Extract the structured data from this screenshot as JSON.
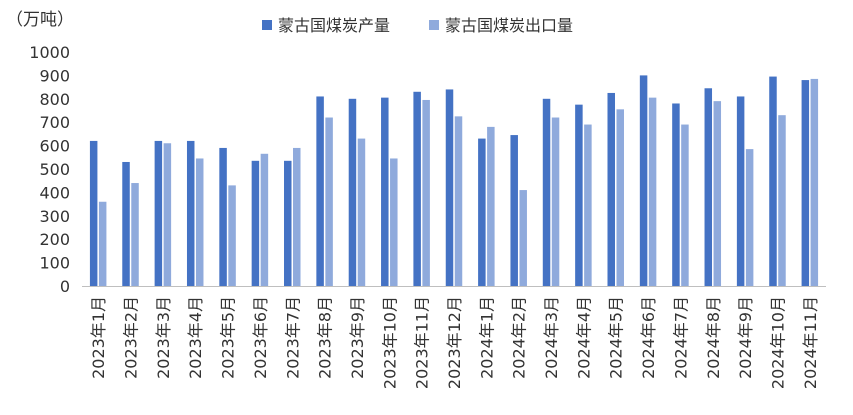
{
  "chart_data": {
    "type": "bar",
    "unit_label": "（万吨）",
    "categories": [
      "2023年1月",
      "2023年2月",
      "2023年3月",
      "2023年4月",
      "2023年5月",
      "2023年6月",
      "2023年7月",
      "2023年8月",
      "2023年9月",
      "2023年10月",
      "2023年11月",
      "2023年12月",
      "2024年1月",
      "2024年2月",
      "2024年3月",
      "2024年4月",
      "2024年5月",
      "2024年6月",
      "2024年7月",
      "2024年8月",
      "2024年9月",
      "2024年10月",
      "2024年11月"
    ],
    "series": [
      {
        "name": "蒙古国煤炭产量",
        "color": "#4472C4",
        "values": [
          620,
          530,
          620,
          620,
          590,
          535,
          535,
          810,
          800,
          805,
          830,
          840,
          630,
          645,
          800,
          775,
          825,
          900,
          780,
          845,
          810,
          895,
          880
        ]
      },
      {
        "name": "蒙古国煤炭出口量",
        "color": "#8FAADC",
        "values": [
          360,
          440,
          610,
          545,
          430,
          565,
          590,
          720,
          630,
          545,
          795,
          725,
          680,
          410,
          720,
          690,
          755,
          805,
          690,
          790,
          585,
          730,
          885
        ]
      }
    ],
    "yticks": [
      "0",
      "100",
      "200",
      "300",
      "400",
      "500",
      "600",
      "700",
      "800",
      "900",
      "1000"
    ],
    "ylim": [
      0,
      1000
    ],
    "legend_position": "top-center",
    "grid": false
  }
}
